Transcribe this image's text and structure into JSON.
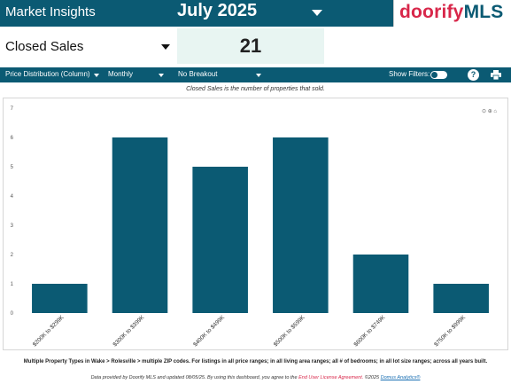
{
  "header": {
    "title": "Market Insights",
    "month": "July 2025",
    "logo_part1": "doorify",
    "logo_part2": "MLS"
  },
  "metric": {
    "selected": "Closed Sales",
    "value": "21"
  },
  "toolbar": {
    "view": "Price Distribution (Column)",
    "period": "Monthly",
    "breakout": "No Breakout",
    "show_filters": "Show Filters:",
    "help": "?"
  },
  "description": "Closed Sales is the number of properties that sold.",
  "chart_data": {
    "type": "bar",
    "categories": [
      "$200K to $299K",
      "$300K to $399K",
      "$400K to $499K",
      "$500K to $599K",
      "$600K to $749K",
      "$750K to $999K"
    ],
    "values": [
      1,
      6,
      5,
      6,
      2,
      1
    ],
    "ylim": [
      0,
      7
    ],
    "yticks": [
      "0",
      "1",
      "2",
      "3",
      "4",
      "5",
      "6",
      "7"
    ],
    "bar_color": "#0b5a73",
    "grid": false
  },
  "filter_note": "Multiple Property Types in Wake > Rolesville > multiple ZIP codes. For listings in all price ranges; in all living area ranges; all # of bedrooms; in all lot size ranges; across all years built.",
  "footer": {
    "text": "Data provided by Doorify MLS and updated 08/05/25.  By using this dashboard, you agree to the",
    "eula": "End User License Agreement.",
    "copyright": " ©2025",
    "brand": "Domus Analytics®"
  },
  "colors": {
    "brand": "#0b5a73",
    "accent": "#d8274a",
    "value_bg": "#e8f5f2"
  }
}
